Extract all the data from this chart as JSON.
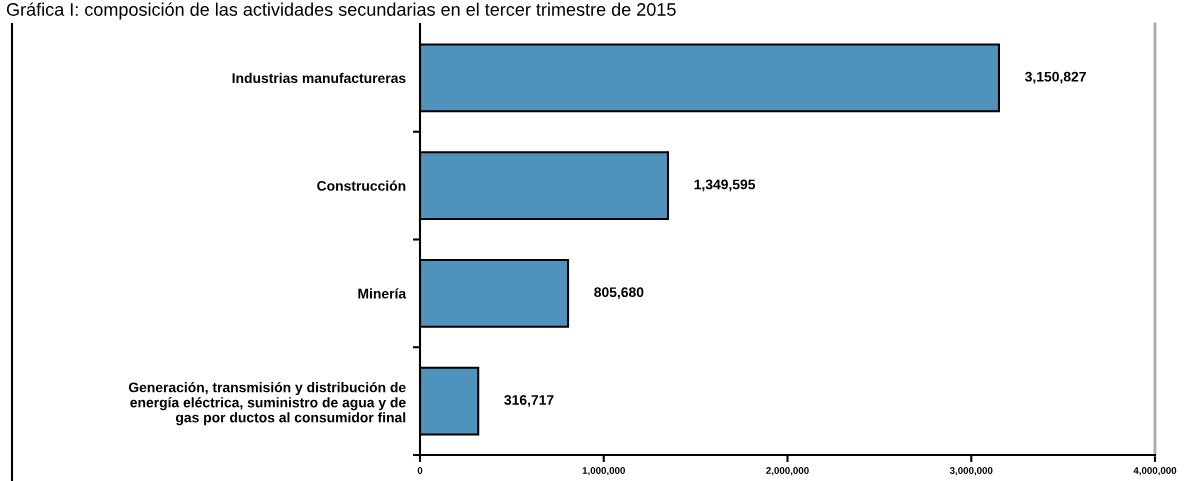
{
  "chart_data": {
    "type": "bar",
    "orientation": "horizontal",
    "title": "Gráfica I: composición de las actividades secundarias en el tercer trimestre de 2015",
    "categories": [
      "Industrias manufactureras",
      "Construcción",
      "Minería",
      "Generación, transmisión y distribución de\nenergía eléctrica, suministro de agua y de\ngas por ductos al consumidor final"
    ],
    "values": [
      3150827,
      1349595,
      805680,
      316717
    ],
    "value_labels": [
      "3,150,827",
      "1,349,595",
      "805,680",
      "316,717"
    ],
    "color": "#4f93bd",
    "xlim": [
      0,
      4000000
    ],
    "xticks": [
      {
        "value": 0,
        "label": "0"
      },
      {
        "value": 1000000,
        "label": "1,000,000"
      },
      {
        "value": 2000000,
        "label": "2,000,000"
      },
      {
        "value": 3000000,
        "label": "3,000,000"
      },
      {
        "value": 4000000,
        "label": "4,000,000"
      }
    ],
    "grid": false,
    "legend": false
  }
}
